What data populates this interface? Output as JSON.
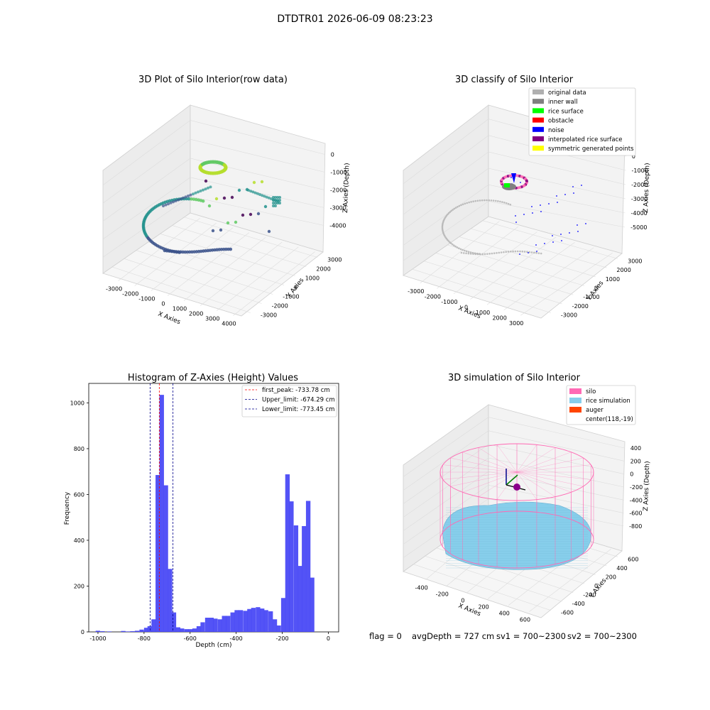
{
  "suptitle": "DTDTR01 2026-06-09 08:23:23",
  "footer": {
    "flag": "flag = 0",
    "avg_depth": "avgDepth = 727 cm",
    "sv1": "sv1 = 700~2300",
    "sv2": "sv2 = 700~2300"
  },
  "chart_data": [
    {
      "type": "scatter",
      "projection": "3d",
      "title": "3D Plot of Silo Interior(row data)",
      "xlabel": "X Axies",
      "ylabel": "Y Axies",
      "zlabel": "Z Axies (Depth)",
      "x_ticks": [
        "-3000",
        "-2000",
        "-1000",
        "0",
        "1000",
        "2000",
        "3000",
        "4000"
      ],
      "y_ticks": [
        "-3000",
        "-2000",
        "-1000",
        "0",
        "1000",
        "2000",
        "3000"
      ],
      "z_ticks": [
        "-4000",
        "-3000",
        "-2000",
        "-1000",
        "0"
      ],
      "colormap": "viridis"
    },
    {
      "type": "scatter",
      "projection": "3d",
      "title": "3D classify of Silo Interior",
      "xlabel": "X Axies",
      "ylabel": "Y Axies",
      "zlabel": "Z Axies (Depth)",
      "x_ticks": [
        "-3000",
        "-2000",
        "-1000",
        "0",
        "1000",
        "2000",
        "3000"
      ],
      "y_ticks": [
        "-3000",
        "-2000",
        "-1000",
        "0",
        "1000",
        "2000",
        "3000"
      ],
      "z_ticks": [
        "-5000",
        "-4000",
        "-3000",
        "-2000",
        "-1000",
        "0"
      ],
      "legend": [
        {
          "label": "original data",
          "color": "#b0b0b0"
        },
        {
          "label": "inner wall",
          "color": "#808080"
        },
        {
          "label": "rice surface",
          "color": "#00ff00"
        },
        {
          "label": "obstacle",
          "color": "#ff0000"
        },
        {
          "label": "noise",
          "color": "#0000ff"
        },
        {
          "label": "interpolated rice surface",
          "color": "#800080"
        },
        {
          "label": "symmetric generated points",
          "color": "#ffff00"
        }
      ],
      "legend_position": "top-right"
    },
    {
      "type": "bar",
      "title": "Histogram of Z-Axies (Height) Values",
      "xlabel": "Depth (cm)",
      "ylabel": "Frequency",
      "bar_color": "#4a4af5",
      "xlim": [
        -1040,
        45
      ],
      "ylim": [
        0,
        1085
      ],
      "x_ticks": [
        -1000,
        -800,
        -600,
        -400,
        -200,
        0
      ],
      "y_ticks": [
        0,
        200,
        400,
        600,
        800,
        1000
      ],
      "bin_width": 19.5,
      "bins": [
        {
          "x": -1010,
          "value": 5
        },
        {
          "x": -990,
          "value": 3
        },
        {
          "x": -960,
          "value": 2
        },
        {
          "x": -900,
          "value": 4
        },
        {
          "x": -880,
          "value": 2
        },
        {
          "x": -860,
          "value": 3
        },
        {
          "x": -840,
          "value": 5
        },
        {
          "x": -820,
          "value": 10
        },
        {
          "x": -800,
          "value": 18
        },
        {
          "x": -785,
          "value": 25
        },
        {
          "x": -768,
          "value": 55
        },
        {
          "x": -750,
          "value": 685
        },
        {
          "x": -733,
          "value": 1035
        },
        {
          "x": -715,
          "value": 640
        },
        {
          "x": -697,
          "value": 275
        },
        {
          "x": -680,
          "value": 85
        },
        {
          "x": -662,
          "value": 20
        },
        {
          "x": -645,
          "value": 15
        },
        {
          "x": -625,
          "value": 12
        },
        {
          "x": -607,
          "value": 12
        },
        {
          "x": -590,
          "value": 15
        },
        {
          "x": -572,
          "value": 25
        },
        {
          "x": -555,
          "value": 42
        },
        {
          "x": -535,
          "value": 62
        },
        {
          "x": -517,
          "value": 62
        },
        {
          "x": -500,
          "value": 58
        },
        {
          "x": -480,
          "value": 55
        },
        {
          "x": -462,
          "value": 70
        },
        {
          "x": -445,
          "value": 70
        },
        {
          "x": -425,
          "value": 85
        },
        {
          "x": -407,
          "value": 95
        },
        {
          "x": -390,
          "value": 95
        },
        {
          "x": -370,
          "value": 92
        },
        {
          "x": -352,
          "value": 100
        },
        {
          "x": -335,
          "value": 105
        },
        {
          "x": -315,
          "value": 108
        },
        {
          "x": -297,
          "value": 102
        },
        {
          "x": -280,
          "value": 95
        },
        {
          "x": -260,
          "value": 90
        },
        {
          "x": -242,
          "value": 55
        },
        {
          "x": -225,
          "value": 28
        },
        {
          "x": -205,
          "value": 148
        },
        {
          "x": -187,
          "value": 688
        },
        {
          "x": -170,
          "value": 570
        },
        {
          "x": -150,
          "value": 465
        },
        {
          "x": -132,
          "value": 288
        },
        {
          "x": -115,
          "value": 462
        },
        {
          "x": -97,
          "value": 572
        },
        {
          "x": -80,
          "value": 237
        }
      ],
      "reference_lines": [
        {
          "label": "first_peak: -733.78 cm",
          "value": -733.78,
          "color": "#ff0000"
        },
        {
          "label": "Upper_limit: -674.29 cm",
          "value": -674.29,
          "color": "#00008b"
        },
        {
          "label": "Lower_limit: -773.45 cm",
          "value": -773.45,
          "color": "#00008b"
        }
      ],
      "legend_position": "top-right"
    },
    {
      "type": "surface",
      "projection": "3d",
      "title": "3D simulation of Silo Interior",
      "xlabel": "X Axies",
      "ylabel": "Y Axies",
      "zlabel": "Z Axies (Depth)",
      "x_ticks": [
        "-400",
        "-200",
        "0",
        "200",
        "400",
        "600"
      ],
      "y_ticks": [
        "-600",
        "-400",
        "-200",
        "0",
        "200",
        "400",
        "600"
      ],
      "z_ticks": [
        "-800",
        "-600",
        "-400",
        "-200",
        "0",
        "200",
        "400"
      ],
      "legend": [
        {
          "label": "silo",
          "color": "#ff69b4"
        },
        {
          "label": "rice simulation",
          "color": "#87ceeb"
        },
        {
          "label": "auger",
          "color": "#ff4500"
        },
        {
          "label": "center(118,-19)",
          "color": ""
        }
      ],
      "legend_position": "top-right"
    }
  ]
}
